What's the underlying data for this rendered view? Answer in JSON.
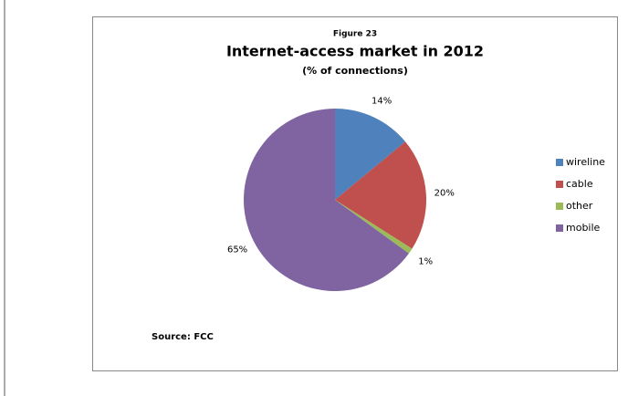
{
  "chart_data": {
    "type": "pie",
    "figure_label": "Figure 23",
    "title": "Internet-access market in 2012",
    "subtitle": "(% of connections)",
    "categories": [
      "wireline",
      "cable",
      "other",
      "mobile"
    ],
    "values": [
      14,
      20,
      1,
      65
    ],
    "value_labels": [
      "14%",
      "20%",
      "1%",
      "65%"
    ],
    "colors": [
      "#4f81bd",
      "#c0504d",
      "#9bbb59",
      "#8064a2"
    ],
    "legend": "right",
    "source": "Source: FCC"
  }
}
